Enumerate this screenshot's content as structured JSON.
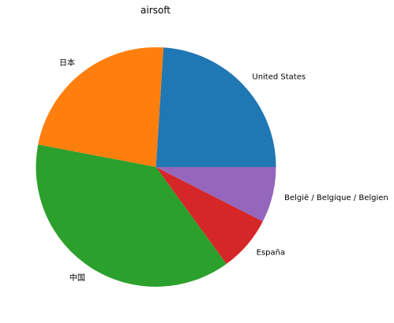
{
  "chart_data": {
    "type": "pie",
    "title": "airsoft",
    "slices": [
      {
        "label": "United States",
        "value": 24.0,
        "color": "#1f77b4"
      },
      {
        "label": "日本",
        "value": 23.0,
        "color": "#ff7f0e"
      },
      {
        "label": "中国",
        "value": 38.0,
        "color": "#2ca02c"
      },
      {
        "label": "España",
        "value": 7.5,
        "color": "#d62728"
      },
      {
        "label": "België / Belgique / Belgien",
        "value": 7.5,
        "color": "#9467bd"
      }
    ],
    "start_angle_deg": 0,
    "direction": "counterclockwise",
    "legend": "none"
  }
}
